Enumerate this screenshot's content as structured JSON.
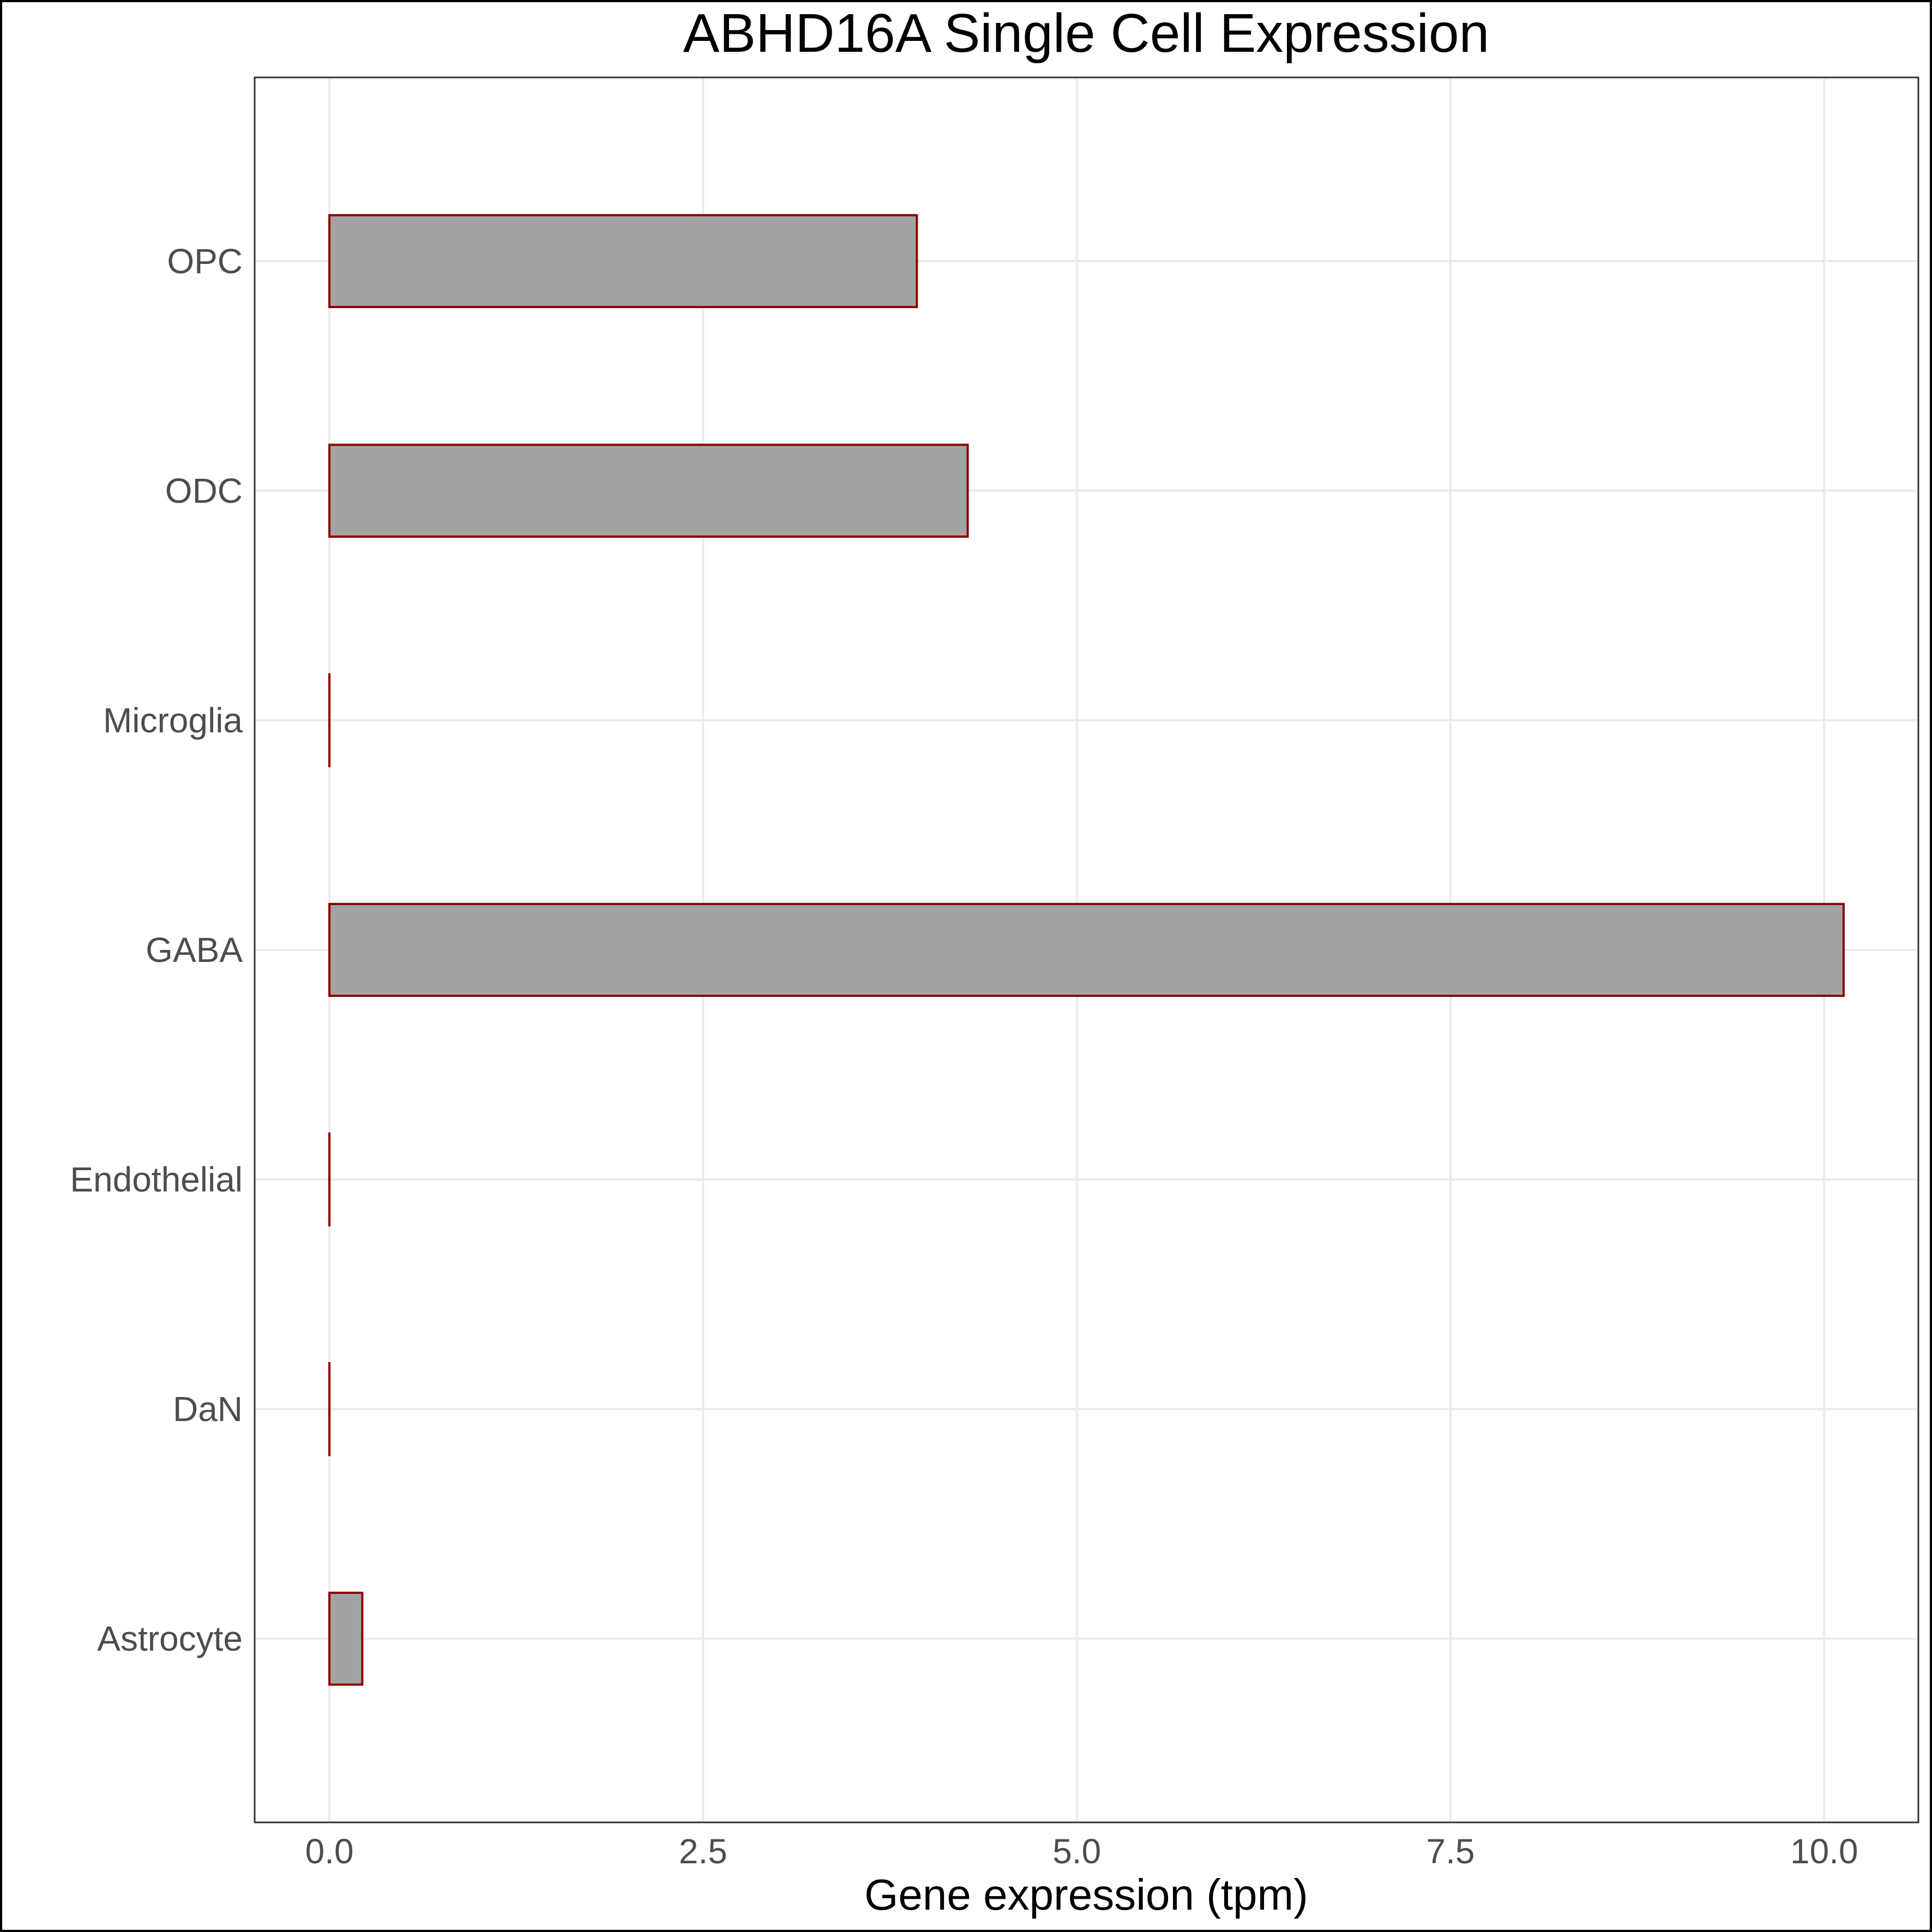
{
  "chart_data": {
    "type": "bar",
    "orientation": "horizontal",
    "title": "ABHD16A Single Cell Expression",
    "xlabel": "Gene expression (tpm)",
    "ylabel": "",
    "categories": [
      "OPC",
      "ODC",
      "Microglia",
      "GABA",
      "Endothelial",
      "DaN",
      "Astrocyte"
    ],
    "values": [
      3.93,
      4.27,
      0.0,
      10.13,
      0.0,
      0.0,
      0.22
    ],
    "xlim": [
      -0.5,
      10.63
    ],
    "xticks": [
      0.0,
      2.5,
      5.0,
      7.5,
      10.0
    ],
    "xtick_labels": [
      "0.0",
      "2.5",
      "5.0",
      "7.5",
      "10.0"
    ],
    "grid": true,
    "legend": "none",
    "colors": {
      "bar_fill": "#a3a3a3",
      "bar_stroke": "#8b0000",
      "grid": "#ebebeb",
      "panel_border": "#333333",
      "tick_text": "#4d4d4d"
    }
  }
}
